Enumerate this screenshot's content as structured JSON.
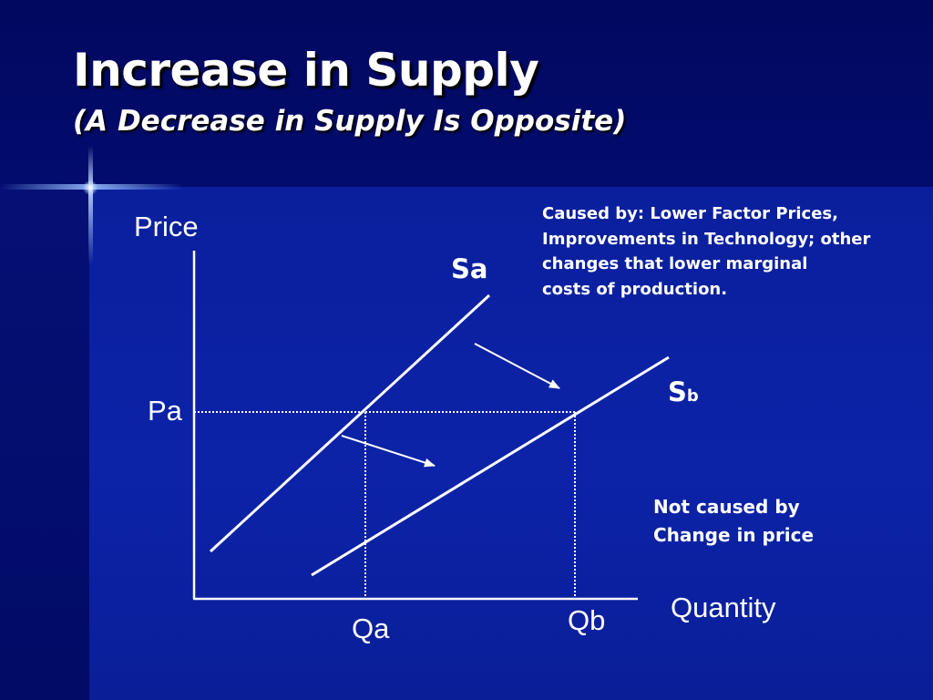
{
  "slide": {
    "title": "Increase in Supply",
    "subtitle": "(A Decrease in Supply Is Opposite)"
  },
  "diagram": {
    "y_axis_label": "Price",
    "x_axis_label": "Quantity",
    "price_label": "Pa",
    "quantity_labels": {
      "qa": "Qa",
      "qb": "Qb"
    },
    "curves": {
      "supply_a": {
        "label": "Sa"
      },
      "supply_b": {
        "label_main": "S",
        "label_sub": "b"
      }
    },
    "cause_note": {
      "lines": [
        "Caused by: Lower Factor Prices,",
        "Improvements in Technology; other",
        "changes that lower marginal",
        "costs of production."
      ]
    },
    "not_caused_note": {
      "lines": [
        "Not caused by",
        "Change in price"
      ]
    },
    "line_color": "#ffffff"
  },
  "colors": {
    "header_background": "#01085f",
    "panel_background": "#0c23a8",
    "text": "#ffffff"
  }
}
